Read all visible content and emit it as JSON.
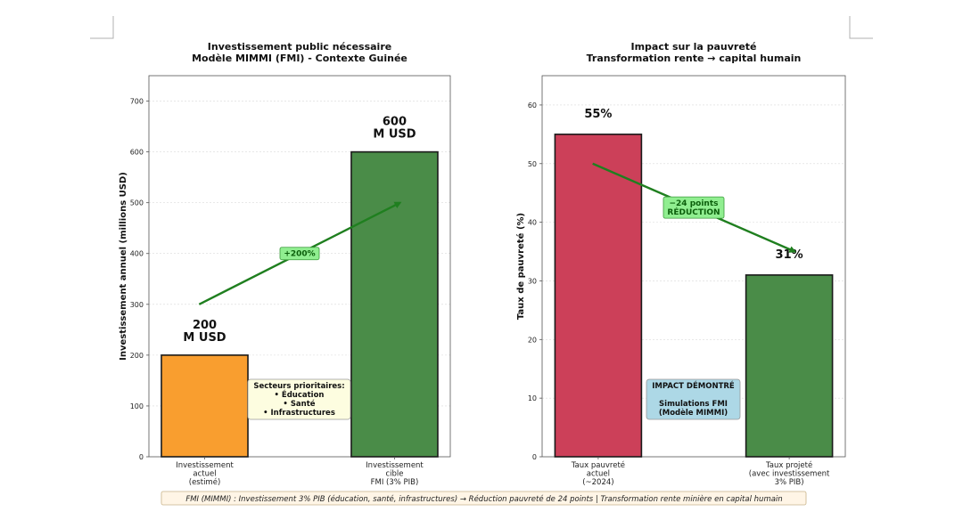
{
  "colors": {
    "orange": "#f99e2f",
    "green": "#4a8c48",
    "red": "#cc4059",
    "arrow": "#1f7f1f",
    "badge_fill": "#90ee90",
    "note_fill": "#fdfde0",
    "impact_fill": "#add8e6",
    "footer_fill": "#fff5e6"
  },
  "chart_data": [
    {
      "type": "bar",
      "title": [
        "Investissement public nécessaire",
        "Modèle MIMMI (FMI) - Contexte Guinée"
      ],
      "xlabel": "",
      "ylabel": "Investissement annuel (millions USD)",
      "ylim": [
        0,
        750
      ],
      "yticks": [
        0,
        100,
        200,
        300,
        400,
        500,
        600,
        700
      ],
      "grid": "horizontal",
      "categories": [
        [
          "Investissement",
          "actuel",
          "(estimé)"
        ],
        [
          "Investissement",
          "cible",
          "FMI (3% PIB)"
        ]
      ],
      "values": [
        200,
        600
      ],
      "bar_colors": [
        "orange",
        "green"
      ],
      "value_labels": [
        [
          "200",
          "M USD"
        ],
        [
          "600",
          "M USD"
        ]
      ],
      "arrow": {
        "from": [
          0.5,
          300
        ],
        "to": [
          2.5,
          500
        ],
        "label": "+200%"
      },
      "note": [
        "Secteurs prioritaires:",
        "• Éducation",
        "• Santé",
        "• Infrastructures"
      ]
    },
    {
      "type": "bar",
      "title": [
        "Impact sur la pauvreté",
        "Transformation rente → capital humain"
      ],
      "xlabel": "",
      "ylabel": "Taux de pauvreté (%)",
      "ylim": [
        0,
        65
      ],
      "yticks": [
        0,
        10,
        20,
        30,
        40,
        50,
        60
      ],
      "grid": "horizontal",
      "categories": [
        [
          "Taux pauvreté",
          "actuel",
          "(~2024)"
        ],
        [
          "Taux projeté",
          "(avec investissement",
          "3% PIB)"
        ]
      ],
      "values": [
        55,
        31
      ],
      "bar_colors": [
        "red",
        "green"
      ],
      "value_labels": [
        [
          "55%"
        ],
        [
          "31%"
        ]
      ],
      "arrow": {
        "from": [
          0.5,
          50
        ],
        "to": [
          2.5,
          35
        ],
        "label": [
          "−24 points",
          "RÉDUCTION"
        ]
      },
      "note": [
        "IMPACT DÉMONTRÉ",
        "",
        "Simulations FMI",
        "(Modèle MIMMI)"
      ]
    }
  ],
  "footer": "FMI (MIMMI) : Investissement 3% PIB (éducation, santé, infrastructures) → Réduction pauvreté de 24 points | Transformation rente minière en capital humain"
}
